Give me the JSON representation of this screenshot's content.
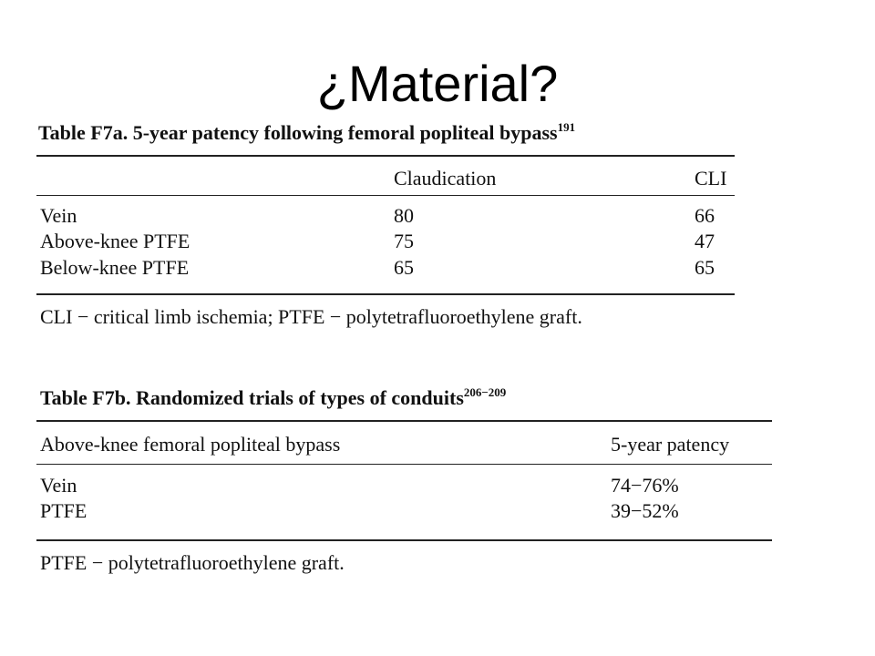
{
  "slide": {
    "title": "¿Material?"
  },
  "table_a": {
    "caption": "Table F7a. 5-year patency following femoral popliteal bypass",
    "caption_ref": "191",
    "headers": [
      "",
      "Claudication",
      "CLI"
    ],
    "rows": [
      [
        "Vein",
        "80",
        "66"
      ],
      [
        "Above-knee PTFE",
        "75",
        "47"
      ],
      [
        "Below-knee PTFE",
        "65",
        "65"
      ]
    ],
    "footnote": "CLI − critical limb ischemia; PTFE − polytetrafluoroethylene graft."
  },
  "table_b": {
    "caption": "Table F7b. Randomized trials of types of conduits",
    "caption_ref": "206−209",
    "headers": [
      "Above-knee femoral popliteal bypass",
      "5-year patency"
    ],
    "rows": [
      [
        "Vein",
        "74−76%"
      ],
      [
        "PTFE",
        "39−52%"
      ]
    ],
    "footnote": "PTFE − polytetrafluoroethylene graft."
  }
}
